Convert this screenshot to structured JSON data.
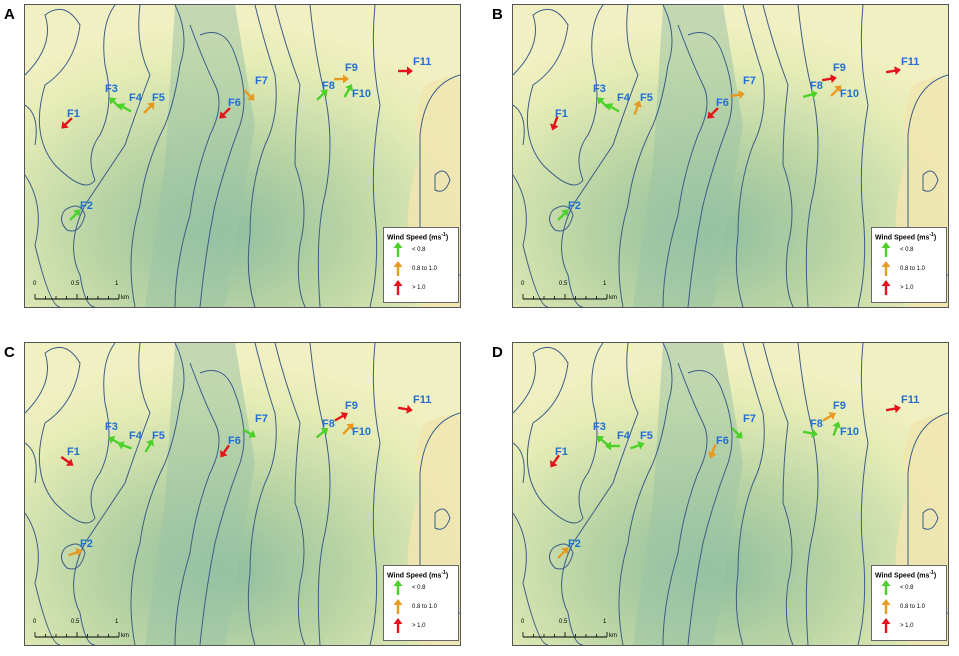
{
  "panels": [
    {
      "letter": "A",
      "arrows": [
        {
          "site": "F1",
          "class": "high",
          "dir": 225
        },
        {
          "site": "F2",
          "class": "low",
          "dir": 45
        },
        {
          "site": "F3",
          "class": "low",
          "dir": 315
        },
        {
          "site": "F4",
          "class": "low",
          "dir": 300
        },
        {
          "site": "F5",
          "class": "mid",
          "dir": 45
        },
        {
          "site": "F6",
          "class": "high",
          "dir": 225
        },
        {
          "site": "F7",
          "class": "mid",
          "dir": 135
        },
        {
          "site": "F8",
          "class": "low",
          "dir": 45
        },
        {
          "site": "F9",
          "class": "mid",
          "dir": 90
        },
        {
          "site": "F10",
          "class": "low",
          "dir": 30
        },
        {
          "site": "F11",
          "class": "high",
          "dir": 90
        }
      ]
    },
    {
      "letter": "B",
      "arrows": [
        {
          "site": "F1",
          "class": "high",
          "dir": 200
        },
        {
          "site": "F2",
          "class": "low",
          "dir": 45
        },
        {
          "site": "F3",
          "class": "low",
          "dir": 315
        },
        {
          "site": "F4",
          "class": "low",
          "dir": 300
        },
        {
          "site": "F5",
          "class": "mid",
          "dir": 20
        },
        {
          "site": "F6",
          "class": "high",
          "dir": 225
        },
        {
          "site": "F7",
          "class": "mid",
          "dir": 80
        },
        {
          "site": "F8",
          "class": "low",
          "dir": 75
        },
        {
          "site": "F9",
          "class": "high",
          "dir": 80
        },
        {
          "site": "F10",
          "class": "mid",
          "dir": 45
        },
        {
          "site": "F11",
          "class": "high",
          "dir": 80
        }
      ]
    },
    {
      "letter": "C",
      "arrows": [
        {
          "site": "F1",
          "class": "high",
          "dir": 125
        },
        {
          "site": "F2",
          "class": "mid",
          "dir": 70
        },
        {
          "site": "F3",
          "class": "low",
          "dir": 300
        },
        {
          "site": "F4",
          "class": "low",
          "dir": 290
        },
        {
          "site": "F5",
          "class": "low",
          "dir": 30
        },
        {
          "site": "F6",
          "class": "high",
          "dir": 215
        },
        {
          "site": "F7",
          "class": "low",
          "dir": 120
        },
        {
          "site": "F8",
          "class": "low",
          "dir": 50
        },
        {
          "site": "F9",
          "class": "high",
          "dir": 60
        },
        {
          "site": "F10",
          "class": "mid",
          "dir": 45
        },
        {
          "site": "F11",
          "class": "high",
          "dir": 100
        }
      ]
    },
    {
      "letter": "D",
      "arrows": [
        {
          "site": "F1",
          "class": "high",
          "dir": 215
        },
        {
          "site": "F2",
          "class": "mid",
          "dir": 45
        },
        {
          "site": "F3",
          "class": "low",
          "dir": 310
        },
        {
          "site": "F4",
          "class": "low",
          "dir": 270
        },
        {
          "site": "F5",
          "class": "low",
          "dir": 70
        },
        {
          "site": "F6",
          "class": "mid",
          "dir": 200
        },
        {
          "site": "F7",
          "class": "low",
          "dir": 135
        },
        {
          "site": "F8",
          "class": "low",
          "dir": 100
        },
        {
          "site": "F9",
          "class": "mid",
          "dir": 60
        },
        {
          "site": "F10",
          "class": "low",
          "dir": 20
        },
        {
          "site": "F11",
          "class": "high",
          "dir": 80
        }
      ]
    }
  ],
  "legend": {
    "title": "Wind Speed (ms",
    "title_sup": "-1",
    "title_end": ")",
    "items": [
      {
        "class": "low",
        "label": "< 0.8"
      },
      {
        "class": "mid",
        "label": "0.8 to 1.0"
      },
      {
        "class": "high",
        "label": "> 1.0"
      }
    ]
  },
  "scale": {
    "labels": [
      "0",
      "0.5",
      "1"
    ],
    "unit": "km"
  },
  "colors": {
    "low": "#4cd12a",
    "mid": "#e69a22",
    "high": "#e3141b",
    "label": "#1f6fd6",
    "contour": "#3d5d8a"
  }
}
